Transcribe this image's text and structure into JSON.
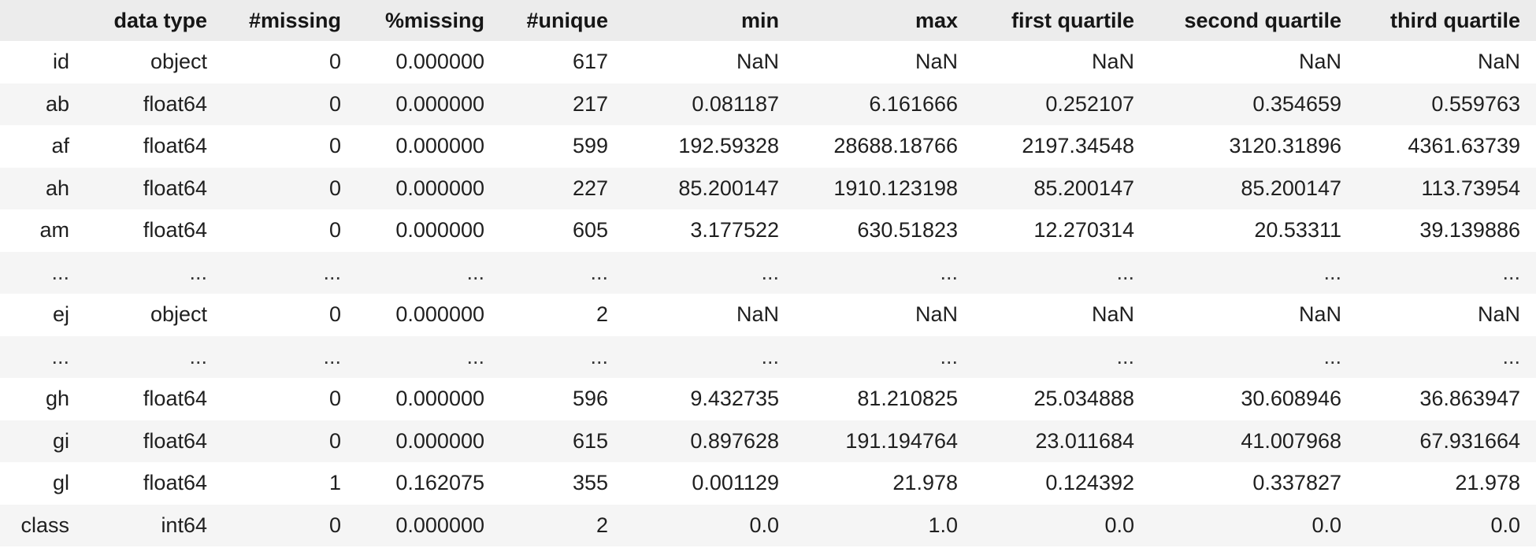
{
  "table": {
    "columns": [
      "",
      "data type",
      "#missing",
      "%missing",
      "#unique",
      "min",
      "max",
      "first quartile",
      "second quartile",
      "third quartile"
    ],
    "rows": [
      [
        "id",
        "object",
        "0",
        "0.000000",
        "617",
        "NaN",
        "NaN",
        "NaN",
        "NaN",
        "NaN"
      ],
      [
        "ab",
        "float64",
        "0",
        "0.000000",
        "217",
        "0.081187",
        "6.161666",
        "0.252107",
        "0.354659",
        "0.559763"
      ],
      [
        "af",
        "float64",
        "0",
        "0.000000",
        "599",
        "192.59328",
        "28688.18766",
        "2197.34548",
        "3120.31896",
        "4361.63739"
      ],
      [
        "ah",
        "float64",
        "0",
        "0.000000",
        "227",
        "85.200147",
        "1910.123198",
        "85.200147",
        "85.200147",
        "113.73954"
      ],
      [
        "am",
        "float64",
        "0",
        "0.000000",
        "605",
        "3.177522",
        "630.51823",
        "12.270314",
        "20.53311",
        "39.139886"
      ],
      [
        "...",
        "...",
        "...",
        "...",
        "...",
        "...",
        "...",
        "...",
        "...",
        "..."
      ],
      [
        "ej",
        "object",
        "0",
        "0.000000",
        "2",
        "NaN",
        "NaN",
        "NaN",
        "NaN",
        "NaN"
      ],
      [
        "...",
        "...",
        "...",
        "...",
        "...",
        "...",
        "...",
        "...",
        "...",
        "..."
      ],
      [
        "gh",
        "float64",
        "0",
        "0.000000",
        "596",
        "9.432735",
        "81.210825",
        "25.034888",
        "30.608946",
        "36.863947"
      ],
      [
        "gi",
        "float64",
        "0",
        "0.000000",
        "615",
        "0.897628",
        "191.194764",
        "23.011684",
        "41.007968",
        "67.931664"
      ],
      [
        "gl",
        "float64",
        "1",
        "0.162075",
        "355",
        "0.001129",
        "21.978",
        "0.124392",
        "0.337827",
        "21.978"
      ],
      [
        "class",
        "int64",
        "0",
        "0.000000",
        "2",
        "0.0",
        "1.0",
        "0.0",
        "0.0",
        "0.0"
      ]
    ]
  }
}
